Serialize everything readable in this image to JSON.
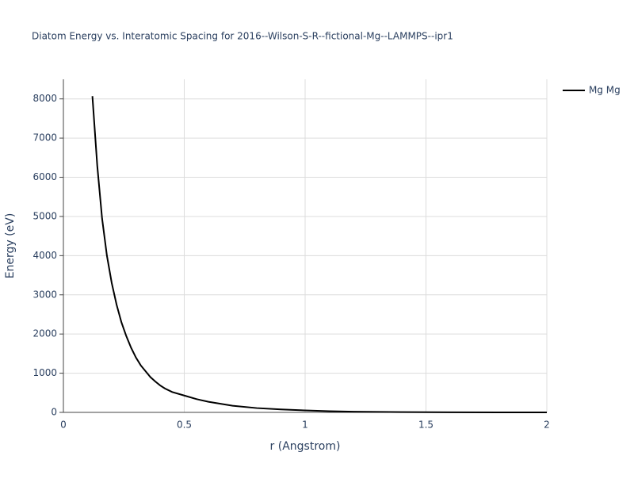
{
  "chart_data": {
    "type": "line",
    "title": "Diatom Energy vs. Interatomic Spacing for 2016--Wilson-S-R--fictional-Mg--LAMMPS--ipr1",
    "x_label": "r (Angstrom)",
    "y_label": "Energy (eV)",
    "x": [
      0.12,
      0.14,
      0.16,
      0.18,
      0.2,
      0.22,
      0.24,
      0.26,
      0.28,
      0.3,
      0.32,
      0.34,
      0.36,
      0.38,
      0.4,
      0.42,
      0.45,
      0.5,
      0.55,
      0.6,
      0.7,
      0.8,
      0.9,
      1.0,
      1.1,
      1.2,
      1.4,
      1.6,
      1.8,
      2.0
    ],
    "series": [
      {
        "name": "Mg Mg",
        "color": "#000000",
        "values": [
          8070,
          6300,
          4950,
          4000,
          3300,
          2750,
          2300,
          1950,
          1650,
          1400,
          1200,
          1050,
          900,
          790,
          690,
          610,
          520,
          430,
          340,
          270,
          170,
          110,
          75,
          50,
          30,
          18,
          8,
          3,
          1,
          0
        ]
      }
    ],
    "xlim": [
      0,
      2
    ],
    "xticks": [
      0,
      0.5,
      1,
      1.5,
      2
    ],
    "ylim": [
      0,
      8500
    ],
    "yticks": [
      0,
      1000,
      2000,
      3000,
      4000,
      5000,
      6000,
      7000,
      8000
    ],
    "grid": true,
    "legend": "right"
  }
}
